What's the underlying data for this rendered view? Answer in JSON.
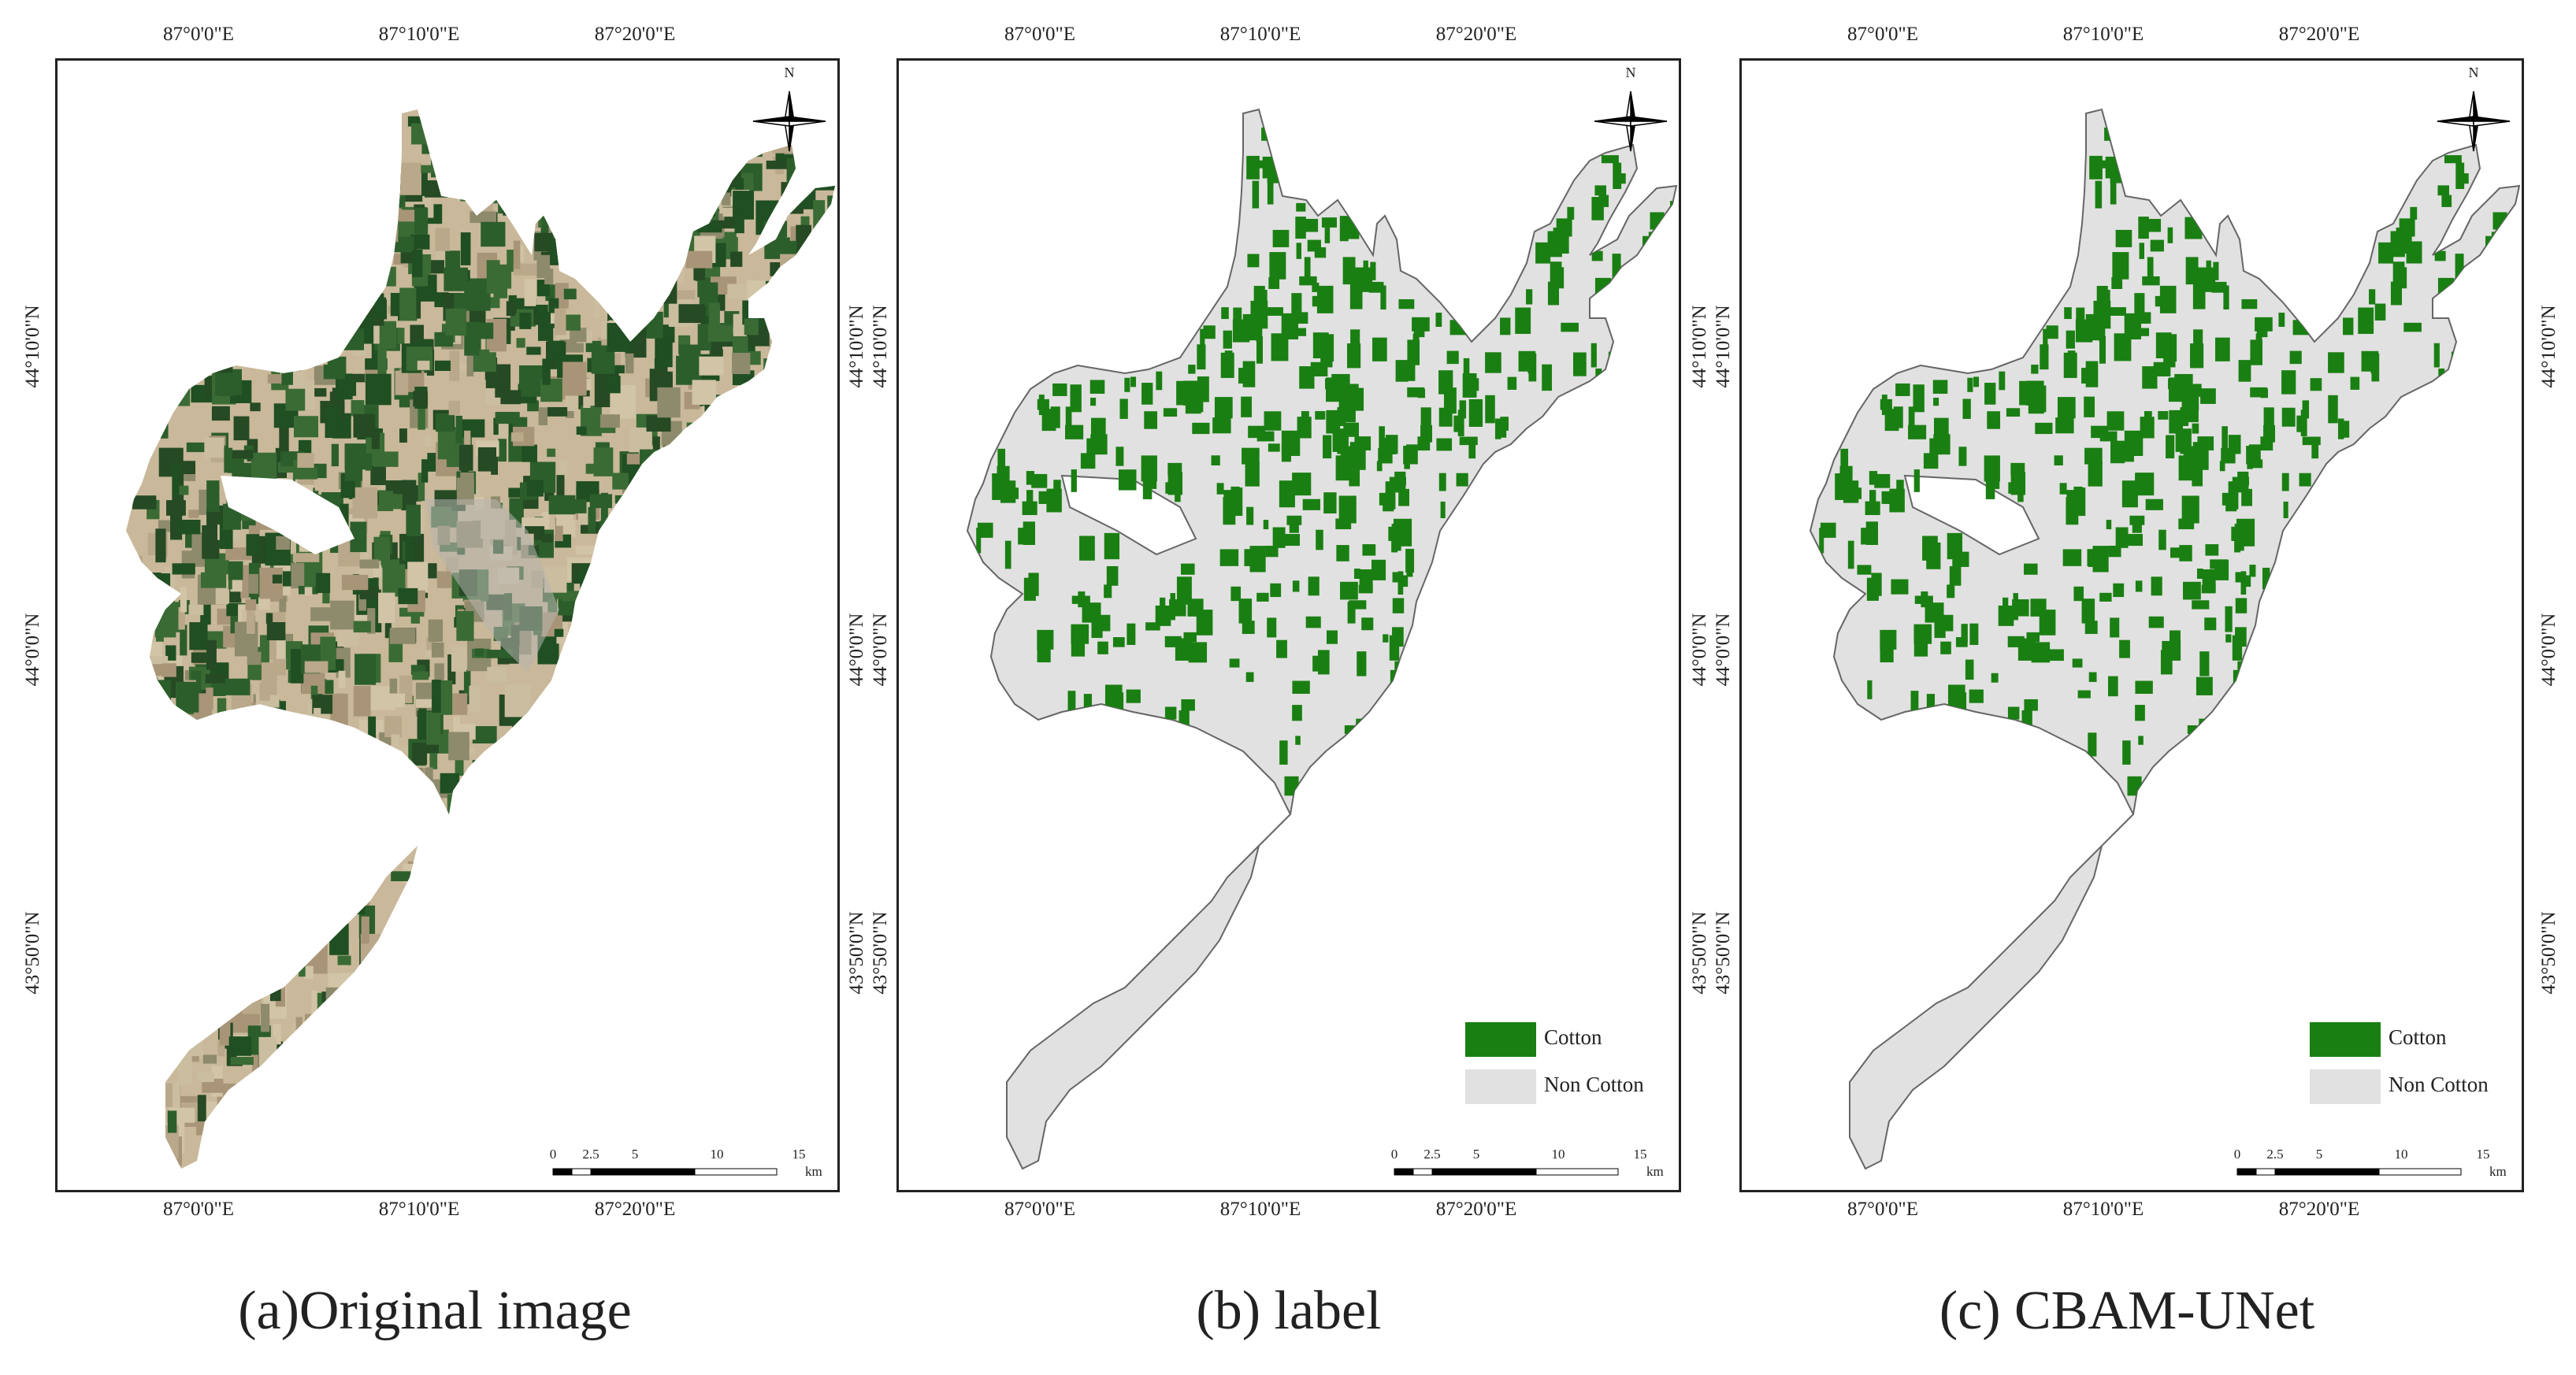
{
  "figure": {
    "panels": [
      {
        "id": "a",
        "caption": "(a)Original image",
        "style": "satellite",
        "lon_labels": [
          "87°0'0\"E",
          "87°10'0\"E",
          "87°20'0\"E"
        ],
        "lat_labels": [
          "44°10'0\"N",
          "44°0'0\"N",
          "43°50'0\"N"
        ],
        "legend": null
      },
      {
        "id": "b",
        "caption": "(b) label",
        "style": "classified",
        "lon_labels": [
          "87°0'0\"E",
          "87°10'0\"E",
          "87°20'0\"E"
        ],
        "lat_labels": [
          "44°10'0\"N",
          "44°0'0\"N",
          "43°50'0\"N"
        ],
        "legend": [
          {
            "label": "Cotton",
            "color": "#1a7f12"
          },
          {
            "label": "Non Cotton",
            "color": "#e1e1e1"
          }
        ]
      },
      {
        "id": "c",
        "caption": "(c) CBAM-UNet",
        "style": "classified",
        "lon_labels": [
          "87°0'0\"E",
          "87°10'0\"E",
          "87°20'0\"E"
        ],
        "lat_labels": [
          "44°10'0\"N",
          "44°0'0\"N",
          "43°50'0\"N"
        ],
        "legend": [
          {
            "label": "Cotton",
            "color": "#1a7f12"
          },
          {
            "label": "Non Cotton",
            "color": "#e1e1e1"
          }
        ]
      }
    ],
    "north_arrow_label": "N",
    "scale_bar": {
      "ticks": [
        "0",
        "2.5",
        "5",
        "10",
        "15"
      ],
      "unit": "km"
    },
    "colors": {
      "cotton": "#1a7f12",
      "non_cotton": "#e1e1e1",
      "satellite_dark": "#2f5a2a",
      "satellite_light": "#c9b89a"
    }
  }
}
